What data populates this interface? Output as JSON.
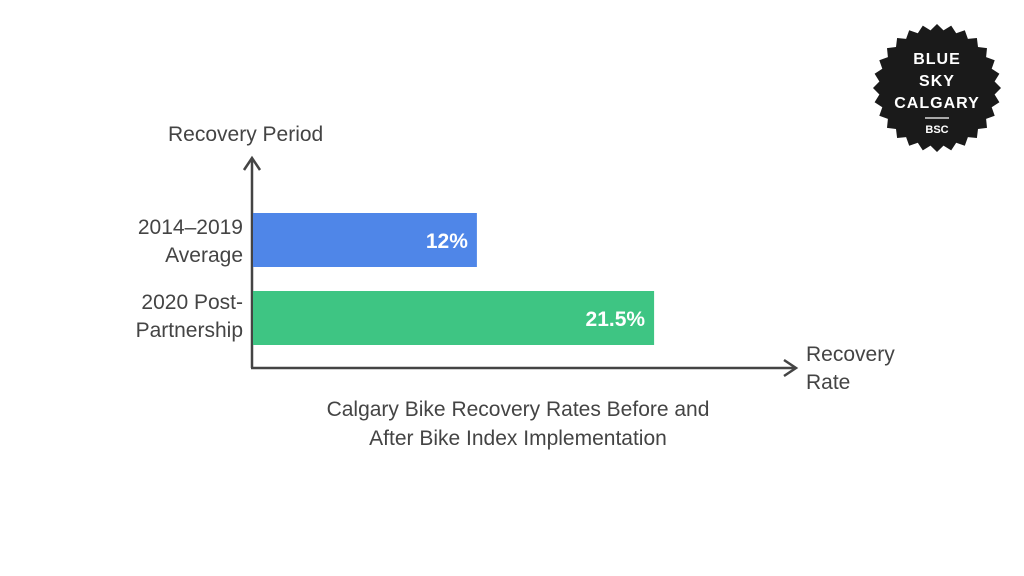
{
  "colors": {
    "axis": "#444444",
    "text": "#444444",
    "badge_bg": "#1a1a1a",
    "badge_text": "#ffffff"
  },
  "badge": {
    "line1": "BLUE",
    "line2": "SKY",
    "line3": "CALGARY",
    "line4": "BSC"
  },
  "chart_data": {
    "type": "bar",
    "orientation": "horizontal",
    "y_axis_label": "Recovery Period",
    "x_axis_label_line1": "Recovery",
    "x_axis_label_line2": "Rate",
    "title_line1": "Calgary Bike Recovery Rates Before and",
    "title_line2": "After Bike Index Implementation",
    "xlim": [
      0,
      29
    ],
    "bars": [
      {
        "label_line1": "2014–2019",
        "label_line2": "Average",
        "value": 12,
        "value_label": "12%",
        "color": "#4f86e8"
      },
      {
        "label_line1": "2020 Post-",
        "label_line2": "Partnership",
        "value": 21.5,
        "value_label": "21.5%",
        "color": "#3ec583"
      }
    ]
  }
}
